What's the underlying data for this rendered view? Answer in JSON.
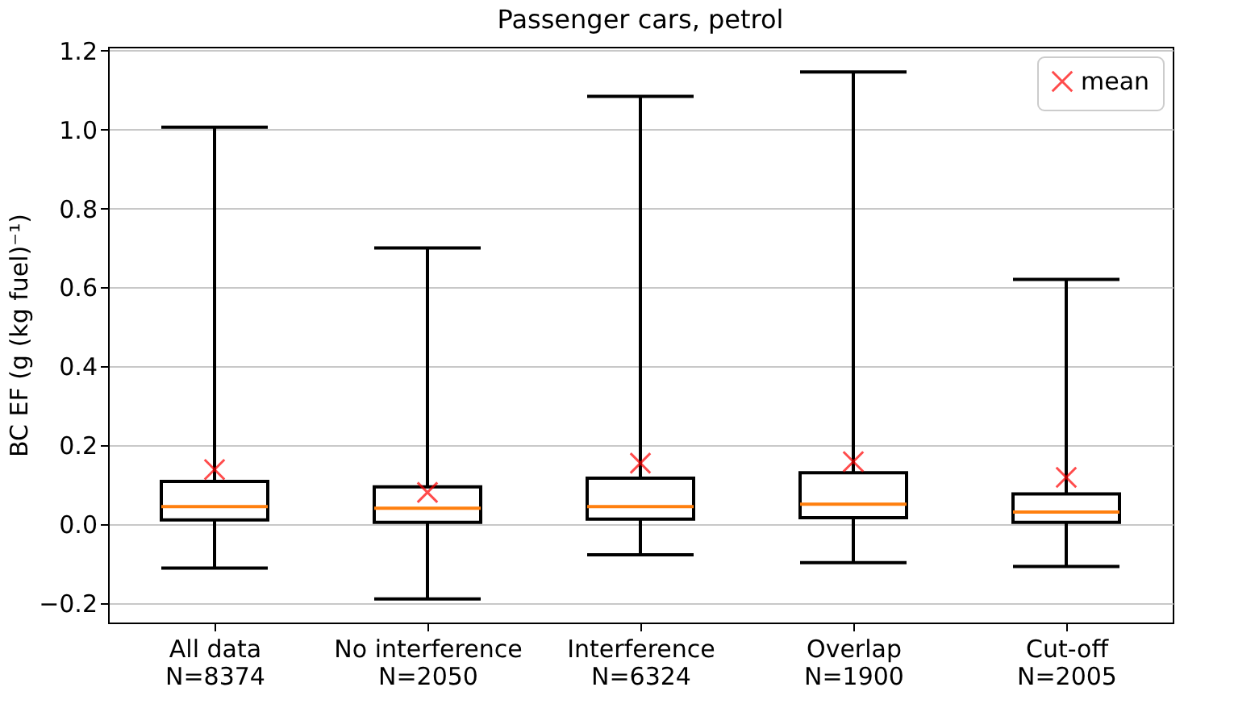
{
  "chart_data": {
    "type": "box",
    "title": "Passenger cars, petrol",
    "ylabel": "BC EF (g (kg fuel)⁻¹)",
    "categories": [
      "All data\nN=8374",
      "No interference\nN=2050",
      "Interference\nN=6324",
      "Overlap\nN=1900",
      "Cut-off\nN=2005"
    ],
    "ylim": [
      -0.25,
      1.21
    ],
    "yticks": [
      {
        "value": -0.2,
        "label": "−0.2"
      },
      {
        "value": 0,
        "label": "0.0"
      },
      {
        "value": 0.2,
        "label": "0.2"
      },
      {
        "value": 0.4,
        "label": "0.4"
      },
      {
        "value": 0.6,
        "label": "0.6"
      },
      {
        "value": 0.8,
        "label": "0.8"
      },
      {
        "value": 1.0,
        "label": "1.0"
      },
      {
        "value": 1.2,
        "label": "1.2"
      }
    ],
    "grid": "y",
    "legend": "top right",
    "series": [
      {
        "color": "#000000",
        "boxes": [
          {
            "low": -0.112,
            "q1": 0.01,
            "median": 0.044,
            "q3": 0.108,
            "high": 1.006
          },
          {
            "low": -0.19,
            "q1": 0.004,
            "median": 0.04,
            "q3": 0.094,
            "high": 0.7
          },
          {
            "low": -0.078,
            "q1": 0.012,
            "median": 0.044,
            "q3": 0.116,
            "high": 1.084
          },
          {
            "low": -0.098,
            "q1": 0.016,
            "median": 0.05,
            "q3": 0.13,
            "high": 1.146
          },
          {
            "low": -0.108,
            "q1": 0.004,
            "median": 0.03,
            "q3": 0.076,
            "high": 0.62
          }
        ]
      },
      {
        "type": "scatter",
        "name": "mean",
        "color": "#ff0000",
        "marker": "cross",
        "x": [
          "All data\nN=8374",
          "No interference\nN=2050",
          "Interference\nN=6324",
          "Overlap\nN=1900",
          "Cut-off\nN=2005"
        ],
        "values": [
          0.138,
          0.08,
          0.154,
          0.158,
          0.118
        ]
      }
    ]
  }
}
